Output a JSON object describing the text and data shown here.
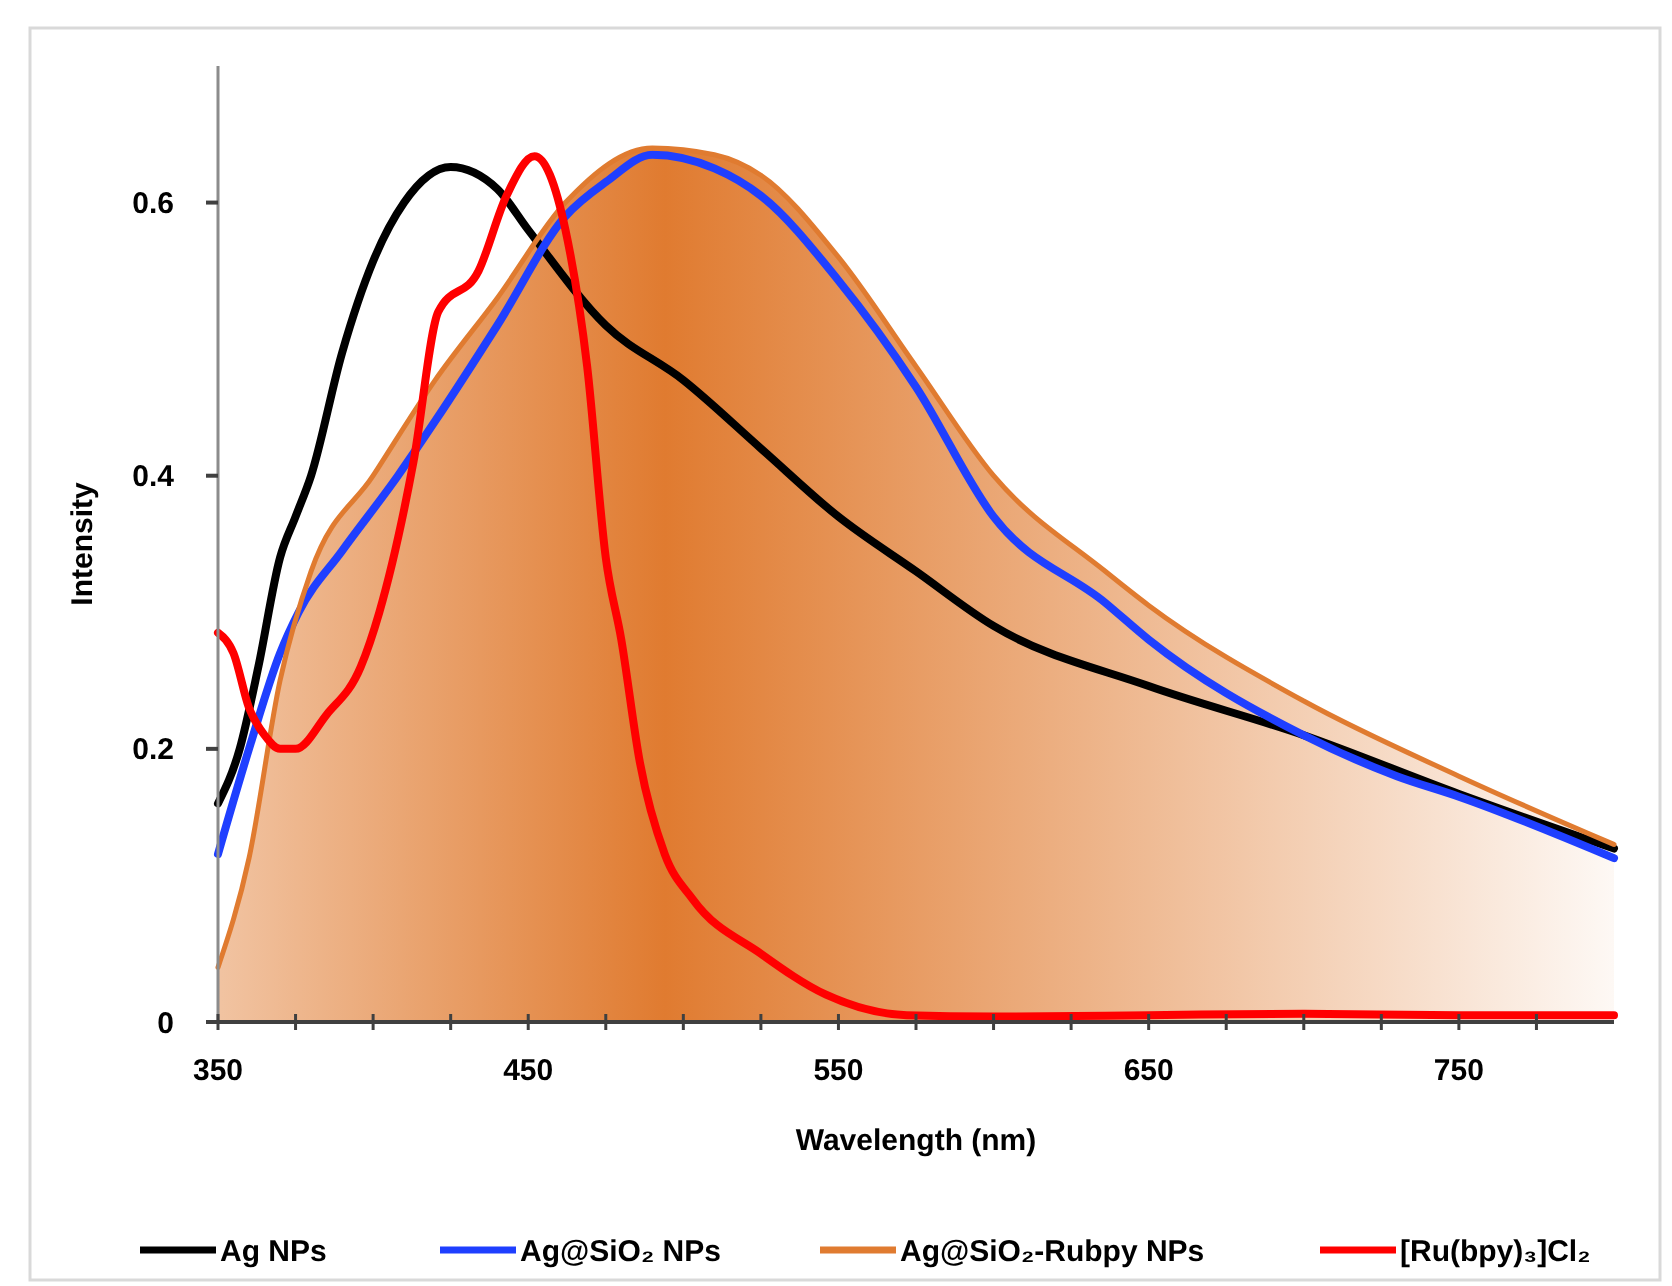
{
  "chart_data": {
    "type": "line",
    "xlabel": "Wavelength (nm)",
    "ylabel": "Intensity",
    "xlim": [
      350,
      800
    ],
    "ylim": [
      0,
      0.7
    ],
    "xticks": [
      350,
      {
        "value": 375,
        "label": null
      },
      {
        "value": 400,
        "label": null
      },
      {
        "value": 425,
        "label": null
      },
      450,
      {
        "value": 475,
        "label": null
      },
      {
        "value": 500,
        "label": null
      },
      {
        "value": 525,
        "label": null
      },
      550,
      {
        "value": 575,
        "label": null
      },
      {
        "value": 600,
        "label": null
      },
      {
        "value": 625,
        "label": null
      },
      650,
      {
        "value": 675,
        "label": null
      },
      {
        "value": 700,
        "label": null
      },
      {
        "value": 725,
        "label": null
      },
      750,
      {
        "value": 775,
        "label": null
      }
    ],
    "yticks": [
      0,
      0.2,
      0.4,
      0.6
    ],
    "grid": false,
    "legend": "bottom",
    "marker": "none",
    "line_style": "solid",
    "series": [
      {
        "name": "Ag NPs",
        "color": "#000000",
        "x": [
          350,
          357,
          363,
          370,
          375,
          380,
          390,
          400,
          410,
          425,
          440,
          450,
          475,
          500,
          525,
          550,
          575,
          600,
          650,
          700,
          750,
          800
        ],
        "values": [
          0.16,
          0.2,
          0.26,
          0.34,
          0.37,
          0.4,
          0.49,
          0.557,
          0.6,
          0.626,
          0.61,
          0.58,
          0.51,
          0.47,
          0.42,
          0.37,
          0.33,
          0.29,
          0.246,
          0.21,
          0.167,
          0.127
        ]
      },
      {
        "name": "Ag@SiO₂ NPs",
        "color": "#1f3fff",
        "x": [
          350,
          360,
          370,
          376,
          390,
          408,
          420,
          440,
          462,
          475,
          490,
          510,
          525,
          550,
          575,
          600,
          636,
          650,
          700,
          730,
          750,
          800
        ],
        "values": [
          0.123,
          0.2,
          0.27,
          0.3,
          0.345,
          0.4,
          0.44,
          0.51,
          0.59,
          0.615,
          0.635,
          0.625,
          0.605,
          0.543,
          0.465,
          0.37,
          0.307,
          0.28,
          0.21,
          0.18,
          0.165,
          0.12
        ]
      },
      {
        "name": "Ag@SiO₂-Rubpy NPs",
        "type": "area",
        "color": "#e07b30",
        "x": [
          350,
          360,
          370,
          380,
          400,
          420,
          440,
          462,
          490,
          510,
          525,
          550,
          575,
          600,
          636,
          650,
          700,
          750,
          800
        ],
        "values": [
          0.04,
          0.12,
          0.25,
          0.33,
          0.4,
          0.47,
          0.53,
          0.6,
          0.64,
          0.635,
          0.62,
          0.56,
          0.48,
          0.4,
          0.33,
          0.305,
          0.235,
          0.18,
          0.13
        ]
      },
      {
        "name": "[Ru(bpy)₃]Cl₂",
        "color": "#ff0000",
        "x": [
          350,
          355,
          360,
          365,
          370,
          375,
          385,
          396,
          402,
          413,
          421,
          434,
          443,
          452,
          462,
          469,
          475,
          480,
          486,
          494,
          503,
          525,
          546,
          572,
          600,
          650,
          700,
          750,
          800
        ],
        "values": [
          0.285,
          0.27,
          0.23,
          0.21,
          0.2,
          0.2,
          0.225,
          0.26,
          0.3,
          0.41,
          0.52,
          0.55,
          0.605,
          0.634,
          0.58,
          0.48,
          0.34,
          0.28,
          0.19,
          0.123,
          0.09,
          0.05,
          0.02,
          0.005,
          0.004,
          0.005,
          0.006,
          0.005,
          0.005
        ]
      }
    ]
  }
}
